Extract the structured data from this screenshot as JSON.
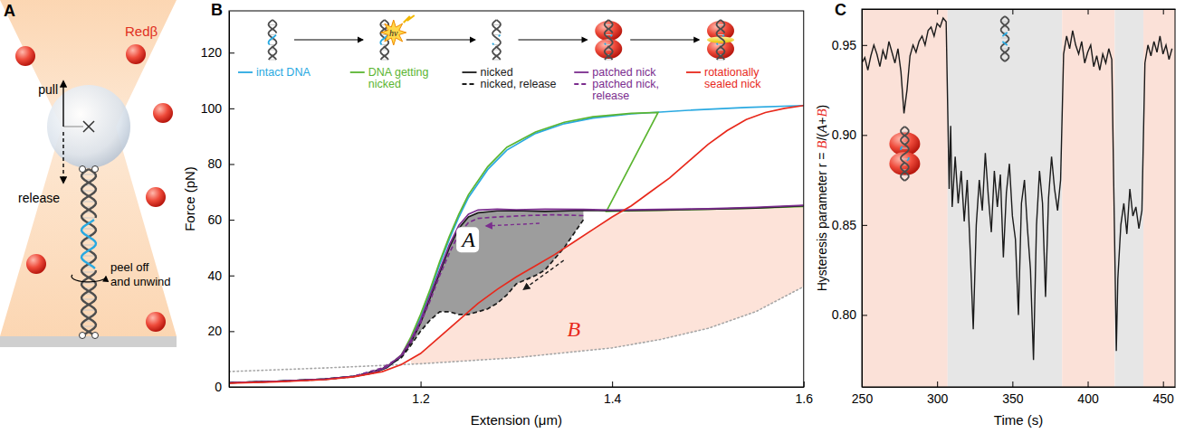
{
  "diagram": {
    "title": "A",
    "pull": "pull",
    "release": "release",
    "protein": "Redβ",
    "action": [
      "peel off",
      "and unwind"
    ]
  },
  "chart_data": [
    {
      "type": "line",
      "title": "B",
      "xlabel": "Extension (μm)",
      "ylabel": "Force (pN)",
      "xlim": [
        1.0,
        1.6
      ],
      "xticks": [
        1.2,
        1.4,
        1.6
      ],
      "ylim": [
        0,
        135
      ],
      "yticks": [
        0,
        20,
        40,
        60,
        80,
        100,
        120
      ],
      "legend": "top",
      "series": [
        {
          "name": "intact DNA",
          "color": "#29a9e1",
          "line_style": "solid",
          "x": [
            1.0,
            1.05,
            1.1,
            1.13,
            1.15,
            1.165,
            1.18,
            1.19,
            1.2,
            1.21,
            1.22,
            1.23,
            1.24,
            1.25,
            1.27,
            1.29,
            1.32,
            1.35,
            1.38,
            1.42,
            1.48,
            1.54,
            1.6
          ],
          "values": [
            1.5,
            2.0,
            2.8,
            3.8,
            5.0,
            7.0,
            11,
            17,
            25,
            34,
            44,
            53,
            61,
            68,
            78,
            85,
            91,
            94.5,
            96.5,
            98,
            99.3,
            100.3,
            101
          ]
        },
        {
          "name": "DNA getting nicked",
          "color": "#5bb531",
          "line_style": "solid",
          "x": [
            1.0,
            1.05,
            1.1,
            1.13,
            1.15,
            1.165,
            1.18,
            1.19,
            1.2,
            1.21,
            1.22,
            1.23,
            1.24,
            1.25,
            1.27,
            1.29,
            1.32,
            1.35,
            1.38,
            1.42,
            1.448,
            1.394,
            1.42,
            1.46,
            1.5,
            1.55,
            1.6
          ],
          "values": [
            1.5,
            2.0,
            2.8,
            3.8,
            5.0,
            7.2,
            11.5,
            18,
            26,
            35,
            45,
            54,
            62,
            69,
            79,
            86,
            91.5,
            95,
            97,
            98.2,
            98.5,
            63,
            63.2,
            63.5,
            63.8,
            64.2,
            64.8
          ]
        },
        {
          "name": "nicked",
          "color": "#1a1a1a",
          "line_style": "solid",
          "x": [
            1.0,
            1.05,
            1.1,
            1.13,
            1.15,
            1.165,
            1.18,
            1.19,
            1.2,
            1.21,
            1.22,
            1.23,
            1.24,
            1.25,
            1.26,
            1.28,
            1.3,
            1.33,
            1.37,
            1.4,
            1.45,
            1.5,
            1.55,
            1.6
          ],
          "values": [
            1.5,
            2.0,
            2.8,
            3.8,
            5.0,
            7.0,
            11,
            16,
            23,
            32,
            41,
            50,
            57,
            61,
            62.5,
            63.2,
            63.3,
            63,
            63.4,
            63.2,
            63.5,
            63.8,
            64.2,
            65
          ]
        },
        {
          "name": "nicked, release",
          "color": "#1a1a1a",
          "line_style": "dashed",
          "x": [
            1.37,
            1.36,
            1.35,
            1.34,
            1.33,
            1.32,
            1.3,
            1.29,
            1.28,
            1.27,
            1.26,
            1.25,
            1.24,
            1.23,
            1.22,
            1.21,
            1.2,
            1.19,
            1.18,
            1.16,
            1.13,
            1.1,
            1.05,
            1.0
          ],
          "values": [
            60,
            55,
            50,
            46,
            42,
            40,
            37,
            33,
            30,
            28,
            27,
            26,
            26,
            27,
            27,
            24,
            20,
            15,
            10.5,
            6.5,
            3.7,
            2.7,
            2.0,
            1.5
          ]
        },
        {
          "name": "patched nick",
          "color": "#7b2d8e",
          "line_style": "solid",
          "x": [
            1.0,
            1.05,
            1.1,
            1.13,
            1.15,
            1.165,
            1.18,
            1.19,
            1.2,
            1.21,
            1.22,
            1.23,
            1.24,
            1.25,
            1.26,
            1.28,
            1.3,
            1.33,
            1.37,
            1.4,
            1.45,
            1.5,
            1.55,
            1.6
          ],
          "values": [
            1.5,
            2.0,
            2.8,
            3.8,
            5.1,
            7.2,
            11.5,
            17,
            24,
            33,
            42,
            51,
            58,
            62,
            63.5,
            63.8,
            63.6,
            63.8,
            63.7,
            63.5,
            63.7,
            64,
            64.5,
            65.2
          ]
        },
        {
          "name": "patched nick, release",
          "color": "#7b2d8e",
          "line_style": "dashed",
          "x": [
            1.37,
            1.34,
            1.31,
            1.28,
            1.26,
            1.25,
            1.24,
            1.23,
            1.22,
            1.21,
            1.2,
            1.19,
            1.18,
            1.16,
            1.13,
            1.1,
            1.05,
            1.0
          ],
          "values": [
            61.5,
            61.8,
            61.5,
            61,
            60.5,
            59,
            55,
            48,
            40,
            31,
            23,
            16,
            11,
            6.8,
            3.8,
            2.8,
            2.0,
            1.5
          ]
        },
        {
          "name": "rotationally sealed nick",
          "color": "#e8291c",
          "line_style": "solid",
          "x": [
            1.0,
            1.05,
            1.1,
            1.13,
            1.16,
            1.18,
            1.2,
            1.22,
            1.24,
            1.26,
            1.28,
            1.3,
            1.32,
            1.34,
            1.36,
            1.38,
            1.4,
            1.42,
            1.44,
            1.46,
            1.48,
            1.5,
            1.52,
            1.54,
            1.56,
            1.58,
            1.6
          ],
          "values": [
            1.3,
            1.8,
            2.6,
            3.6,
            5.5,
            8,
            12,
            18,
            24,
            30,
            35,
            39.5,
            43.5,
            47.5,
            52,
            56.5,
            61,
            65,
            70,
            75,
            81,
            87,
            92,
            96,
            98.5,
            100,
            101
          ]
        },
        {
          "color": "#a6a6a6",
          "line_style": "dotted",
          "x": [
            1.0,
            1.1,
            1.2,
            1.3,
            1.4,
            1.45,
            1.5,
            1.55,
            1.6
          ],
          "values": [
            5.5,
            6.8,
            8.3,
            10.5,
            14,
            17,
            21,
            27,
            36
          ]
        }
      ],
      "annotations": [
        {
          "text": "A",
          "x": 1.25,
          "y": 52,
          "color": "#000000"
        },
        {
          "text": "B",
          "x": 1.36,
          "y": 20,
          "color": "#e8291c"
        },
        {
          "text": "hν"
        }
      ]
    },
    {
      "type": "line",
      "title": "C",
      "xlabel": "Time (s)",
      "ylabel": "Hysteresis parameter r = B/(A+B)",
      "xlim": [
        250,
        458
      ],
      "xticks": [
        250,
        300,
        350,
        400,
        450
      ],
      "ylim": [
        0.76,
        0.97
      ],
      "yticks": [
        {
          "value": 0.8,
          "label": "0.80"
        },
        {
          "value": 0.85,
          "label": "0.85"
        },
        {
          "value": 0.9,
          "label": "0.90"
        },
        {
          "value": 0.95,
          "label": "0.95"
        }
      ],
      "bands": [
        {
          "start": 250,
          "end": 307,
          "color": "#fbe1d8"
        },
        {
          "start": 307,
          "end": 383,
          "color": "#e6e6e6"
        },
        {
          "start": 383,
          "end": 418,
          "color": "#fbe1d8"
        },
        {
          "start": 418,
          "end": 437,
          "color": "#e6e6e6"
        },
        {
          "start": 437,
          "end": 458,
          "color": "#fbe1d8"
        }
      ],
      "series": [
        {
          "color": "#1a1a1a",
          "line_style": "solid",
          "x": [
            250,
            252,
            254,
            256,
            258,
            260,
            262,
            264,
            266,
            268,
            270,
            272,
            274,
            276,
            278,
            280,
            282,
            284,
            286,
            288,
            290,
            292,
            294,
            296,
            298,
            300,
            302,
            304,
            306,
            308,
            309,
            310,
            312,
            314,
            316,
            318,
            320,
            322,
            324,
            326,
            328,
            330,
            332,
            334,
            336,
            338,
            340,
            342,
            344,
            346,
            348,
            350,
            352,
            354,
            356,
            358,
            360,
            362,
            364,
            366,
            368,
            370,
            372,
            374,
            376,
            378,
            380,
            382,
            384,
            386,
            388,
            390,
            392,
            394,
            396,
            398,
            400,
            402,
            404,
            406,
            408,
            410,
            412,
            414,
            416,
            418,
            419,
            420,
            422,
            424,
            426,
            428,
            430,
            432,
            434,
            436,
            438,
            440,
            442,
            444,
            446,
            448,
            450,
            452,
            454,
            456
          ],
          "values": [
            0.94,
            0.943,
            0.936,
            0.944,
            0.95,
            0.945,
            0.938,
            0.947,
            0.942,
            0.952,
            0.946,
            0.94,
            0.948,
            0.935,
            0.912,
            0.925,
            0.944,
            0.95,
            0.946,
            0.952,
            0.955,
            0.95,
            0.958,
            0.96,
            0.955,
            0.962,
            0.96,
            0.965,
            0.963,
            0.87,
            0.905,
            0.86,
            0.888,
            0.862,
            0.88,
            0.852,
            0.875,
            0.835,
            0.792,
            0.85,
            0.875,
            0.858,
            0.89,
            0.866,
            0.846,
            0.88,
            0.86,
            0.878,
            0.832,
            0.868,
            0.884,
            0.855,
            0.842,
            0.8,
            0.862,
            0.875,
            0.848,
            0.825,
            0.775,
            0.85,
            0.88,
            0.862,
            0.81,
            0.865,
            0.888,
            0.87,
            0.858,
            0.875,
            0.945,
            0.955,
            0.948,
            0.958,
            0.95,
            0.945,
            0.952,
            0.94,
            0.946,
            0.95,
            0.938,
            0.944,
            0.936,
            0.945,
            0.94,
            0.948,
            0.942,
            0.835,
            0.78,
            0.82,
            0.85,
            0.862,
            0.845,
            0.87,
            0.855,
            0.86,
            0.848,
            0.858,
            0.94,
            0.95,
            0.944,
            0.952,
            0.946,
            0.955,
            0.945,
            0.95,
            0.942,
            0.948
          ]
        }
      ]
    }
  ]
}
